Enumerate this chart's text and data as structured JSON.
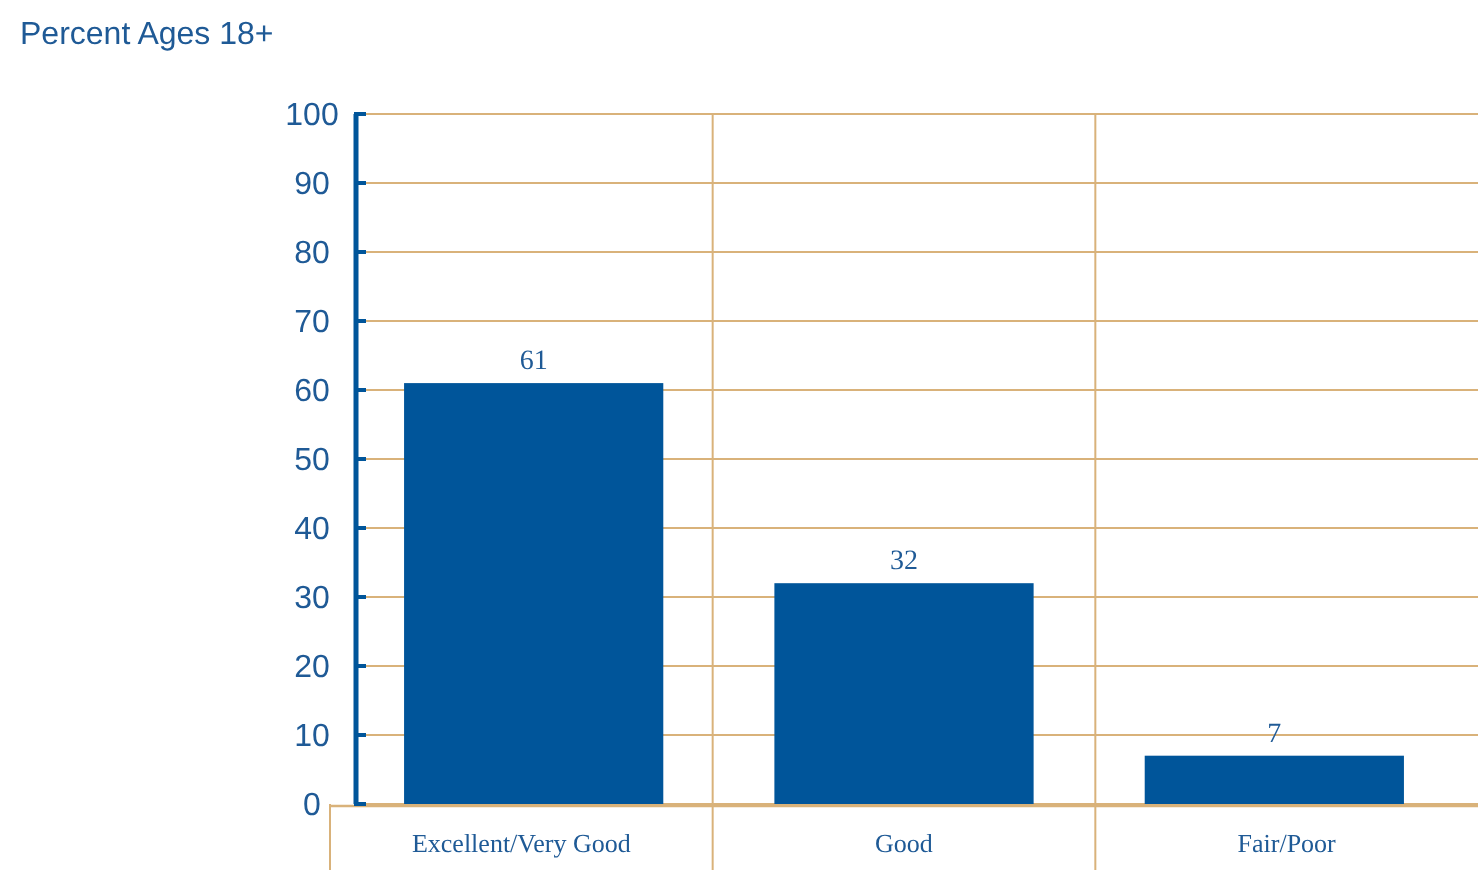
{
  "chart_data": {
    "type": "bar",
    "ylabel": "Percent Ages 18+",
    "categories": [
      "Excellent/Very Good",
      "Good",
      "Fair/Poor"
    ],
    "values": [
      61,
      32,
      7
    ],
    "color": "#00559a",
    "ylim": [
      0,
      100
    ],
    "yticks": [
      0,
      10,
      20,
      30,
      40,
      50,
      60,
      70,
      80,
      90,
      100
    ],
    "grid": true,
    "data_labels": true
  }
}
